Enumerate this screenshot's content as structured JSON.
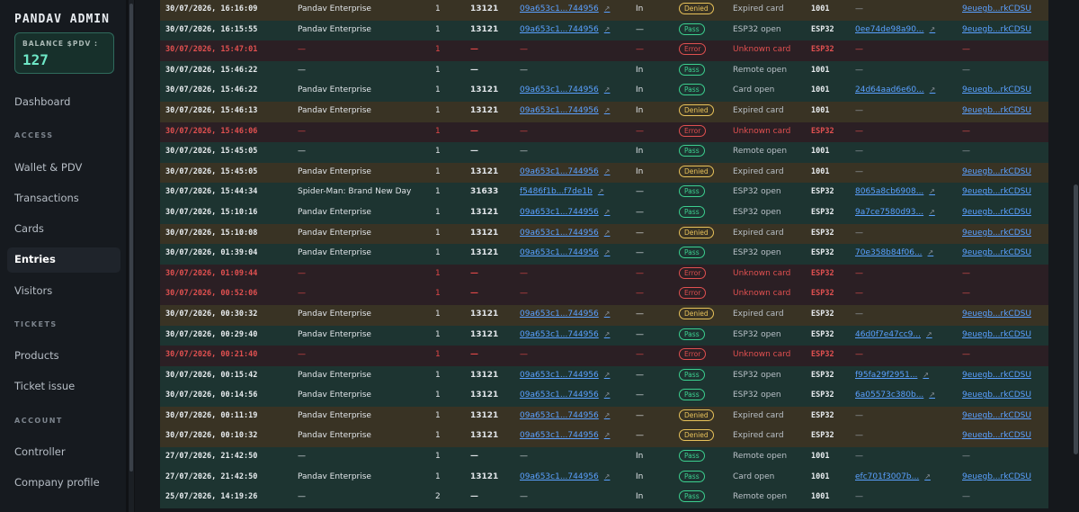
{
  "app": {
    "title": "PANDAV ADMIN"
  },
  "balance": {
    "label": "BALANCE $PDV :",
    "value": "127"
  },
  "nav": {
    "dashboard": "Dashboard",
    "section_access": "ACCESS",
    "wallet": "Wallet & PDV",
    "transactions": "Transactions",
    "cards": "Cards",
    "entries": "Entries",
    "visitors": "Visitors",
    "section_tickets": "TICKETS",
    "products": "Products",
    "ticket_issue": "Ticket issue",
    "section_account": "ACCOUNT",
    "controller": "Controller",
    "company_profile": "Company profile"
  },
  "colors": {
    "pass": "#3ccf8f",
    "denied": "#e8c25a",
    "error": "#e05050",
    "link": "#5aa0ff"
  },
  "rows": [
    {
      "kind": "denied",
      "date": "30/07/2026, 16:16:09",
      "name": "Pandav Enterprise",
      "count": "1",
      "code": "13121",
      "card": "09a653c1...744956",
      "dir": "In",
      "status": "Denied",
      "reason": "Expired card",
      "ctrl": "1001",
      "tx": "—",
      "user": "9euegb...rkCDSU"
    },
    {
      "kind": "in",
      "date": "30/07/2026, 16:15:55",
      "name": "Pandav Enterprise",
      "count": "1",
      "code": "13121",
      "card": "09a653c1...744956",
      "dir": "—",
      "status": "Pass",
      "reason": "ESP32 open",
      "ctrl": "ESP32",
      "tx": "0ee74de98a90...",
      "user": "9euegb...rkCDSU"
    },
    {
      "kind": "error",
      "date": "30/07/2026, 15:47:01",
      "name": "—",
      "count": "1",
      "code": "—",
      "card": "—",
      "dir": "—",
      "status": "Error",
      "reason": "Unknown card",
      "ctrl": "ESP32",
      "tx": "—",
      "user": "—"
    },
    {
      "kind": "in",
      "date": "30/07/2026, 15:46:22",
      "name": "—",
      "count": "1",
      "code": "—",
      "card": "—",
      "dir": "In",
      "status": "Pass",
      "reason": "Remote open",
      "ctrl": "1001",
      "tx": "—",
      "user": "—"
    },
    {
      "kind": "in",
      "date": "30/07/2026, 15:46:22",
      "name": "Pandav Enterprise",
      "count": "1",
      "code": "13121",
      "card": "09a653c1...744956",
      "dir": "In",
      "status": "Pass",
      "reason": "Card open",
      "ctrl": "1001",
      "tx": "24d64aad6e60...",
      "user": "9euegb...rkCDSU"
    },
    {
      "kind": "denied",
      "date": "30/07/2026, 15:46:13",
      "name": "Pandav Enterprise",
      "count": "1",
      "code": "13121",
      "card": "09a653c1...744956",
      "dir": "In",
      "status": "Denied",
      "reason": "Expired card",
      "ctrl": "1001",
      "tx": "—",
      "user": "9euegb...rkCDSU"
    },
    {
      "kind": "error",
      "date": "30/07/2026, 15:46:06",
      "name": "—",
      "count": "1",
      "code": "—",
      "card": "—",
      "dir": "—",
      "status": "Error",
      "reason": "Unknown card",
      "ctrl": "ESP32",
      "tx": "—",
      "user": "—"
    },
    {
      "kind": "in",
      "date": "30/07/2026, 15:45:05",
      "name": "—",
      "count": "1",
      "code": "—",
      "card": "—",
      "dir": "In",
      "status": "Pass",
      "reason": "Remote open",
      "ctrl": "1001",
      "tx": "—",
      "user": "—"
    },
    {
      "kind": "denied",
      "date": "30/07/2026, 15:45:05",
      "name": "Pandav Enterprise",
      "count": "1",
      "code": "13121",
      "card": "09a653c1...744956",
      "dir": "In",
      "status": "Denied",
      "reason": "Expired card",
      "ctrl": "1001",
      "tx": "—",
      "user": "9euegb...rkCDSU"
    },
    {
      "kind": "in",
      "date": "30/07/2026, 15:44:34",
      "name": "Spider-Man: Brand New Day",
      "count": "1",
      "code": "31633",
      "card": "f5486f1b...f7de1b",
      "dir": "—",
      "status": "Pass",
      "reason": "ESP32 open",
      "ctrl": "ESP32",
      "tx": "8065a8cb6908...",
      "user": "9euegb...rkCDSU"
    },
    {
      "kind": "in",
      "date": "30/07/2026, 15:10:16",
      "name": "Pandav Enterprise",
      "count": "1",
      "code": "13121",
      "card": "09a653c1...744956",
      "dir": "—",
      "status": "Pass",
      "reason": "ESP32 open",
      "ctrl": "ESP32",
      "tx": "9a7ce7580d93...",
      "user": "9euegb...rkCDSU"
    },
    {
      "kind": "denied",
      "date": "30/07/2026, 15:10:08",
      "name": "Pandav Enterprise",
      "count": "1",
      "code": "13121",
      "card": "09a653c1...744956",
      "dir": "—",
      "status": "Denied",
      "reason": "Expired card",
      "ctrl": "ESP32",
      "tx": "—",
      "user": "9euegb...rkCDSU"
    },
    {
      "kind": "in",
      "date": "30/07/2026, 01:39:04",
      "name": "Pandav Enterprise",
      "count": "1",
      "code": "13121",
      "card": "09a653c1...744956",
      "dir": "—",
      "status": "Pass",
      "reason": "ESP32 open",
      "ctrl": "ESP32",
      "tx": "70e358b84f06...",
      "user": "9euegb...rkCDSU"
    },
    {
      "kind": "error",
      "date": "30/07/2026, 01:09:44",
      "name": "—",
      "count": "1",
      "code": "—",
      "card": "—",
      "dir": "—",
      "status": "Error",
      "reason": "Unknown card",
      "ctrl": "ESP32",
      "tx": "—",
      "user": "—"
    },
    {
      "kind": "error",
      "date": "30/07/2026, 00:52:06",
      "name": "—",
      "count": "1",
      "code": "—",
      "card": "—",
      "dir": "—",
      "status": "Error",
      "reason": "Unknown card",
      "ctrl": "ESP32",
      "tx": "—",
      "user": "—"
    },
    {
      "kind": "denied",
      "date": "30/07/2026, 00:30:32",
      "name": "Pandav Enterprise",
      "count": "1",
      "code": "13121",
      "card": "09a653c1...744956",
      "dir": "—",
      "status": "Denied",
      "reason": "Expired card",
      "ctrl": "ESP32",
      "tx": "—",
      "user": "9euegb...rkCDSU"
    },
    {
      "kind": "in",
      "date": "30/07/2026, 00:29:40",
      "name": "Pandav Enterprise",
      "count": "1",
      "code": "13121",
      "card": "09a653c1...744956",
      "dir": "—",
      "status": "Pass",
      "reason": "ESP32 open",
      "ctrl": "ESP32",
      "tx": "46d0f7e47cc9...",
      "user": "9euegb...rkCDSU"
    },
    {
      "kind": "error",
      "date": "30/07/2026, 00:21:40",
      "name": "—",
      "count": "1",
      "code": "—",
      "card": "—",
      "dir": "—",
      "status": "Error",
      "reason": "Unknown card",
      "ctrl": "ESP32",
      "tx": "—",
      "user": "—"
    },
    {
      "kind": "in",
      "date": "30/07/2026, 00:15:42",
      "name": "Pandav Enterprise",
      "count": "1",
      "code": "13121",
      "card": "09a653c1...744956",
      "dir": "—",
      "status": "Pass",
      "reason": "ESP32 open",
      "ctrl": "ESP32",
      "tx": "f95fa29f2951...",
      "user": "9euegb...rkCDSU"
    },
    {
      "kind": "in",
      "date": "30/07/2026, 00:14:56",
      "name": "Pandav Enterprise",
      "count": "1",
      "code": "13121",
      "card": "09a653c1...744956",
      "dir": "—",
      "status": "Pass",
      "reason": "ESP32 open",
      "ctrl": "ESP32",
      "tx": "6a05573c380b...",
      "user": "9euegb...rkCDSU"
    },
    {
      "kind": "denied",
      "date": "30/07/2026, 00:11:19",
      "name": "Pandav Enterprise",
      "count": "1",
      "code": "13121",
      "card": "09a653c1...744956",
      "dir": "—",
      "status": "Denied",
      "reason": "Expired card",
      "ctrl": "ESP32",
      "tx": "—",
      "user": "9euegb...rkCDSU"
    },
    {
      "kind": "denied",
      "date": "30/07/2026, 00:10:32",
      "name": "Pandav Enterprise",
      "count": "1",
      "code": "13121",
      "card": "09a653c1...744956",
      "dir": "—",
      "status": "Denied",
      "reason": "Expired card",
      "ctrl": "ESP32",
      "tx": "—",
      "user": "9euegb...rkCDSU"
    },
    {
      "kind": "in",
      "date": "27/07/2026, 21:42:50",
      "name": "—",
      "count": "1",
      "code": "—",
      "card": "—",
      "dir": "In",
      "status": "Pass",
      "reason": "Remote open",
      "ctrl": "1001",
      "tx": "—",
      "user": "—"
    },
    {
      "kind": "in",
      "date": "27/07/2026, 21:42:50",
      "name": "Pandav Enterprise",
      "count": "1",
      "code": "13121",
      "card": "09a653c1...744956",
      "dir": "In",
      "status": "Pass",
      "reason": "Card open",
      "ctrl": "1001",
      "tx": "efc701f3007b...",
      "user": "9euegb...rkCDSU"
    },
    {
      "kind": "in",
      "date": "25/07/2026, 14:19:26",
      "name": "—",
      "count": "2",
      "code": "—",
      "card": "—",
      "dir": "In",
      "status": "Pass",
      "reason": "Remote open",
      "ctrl": "1001",
      "tx": "—",
      "user": "—"
    }
  ]
}
